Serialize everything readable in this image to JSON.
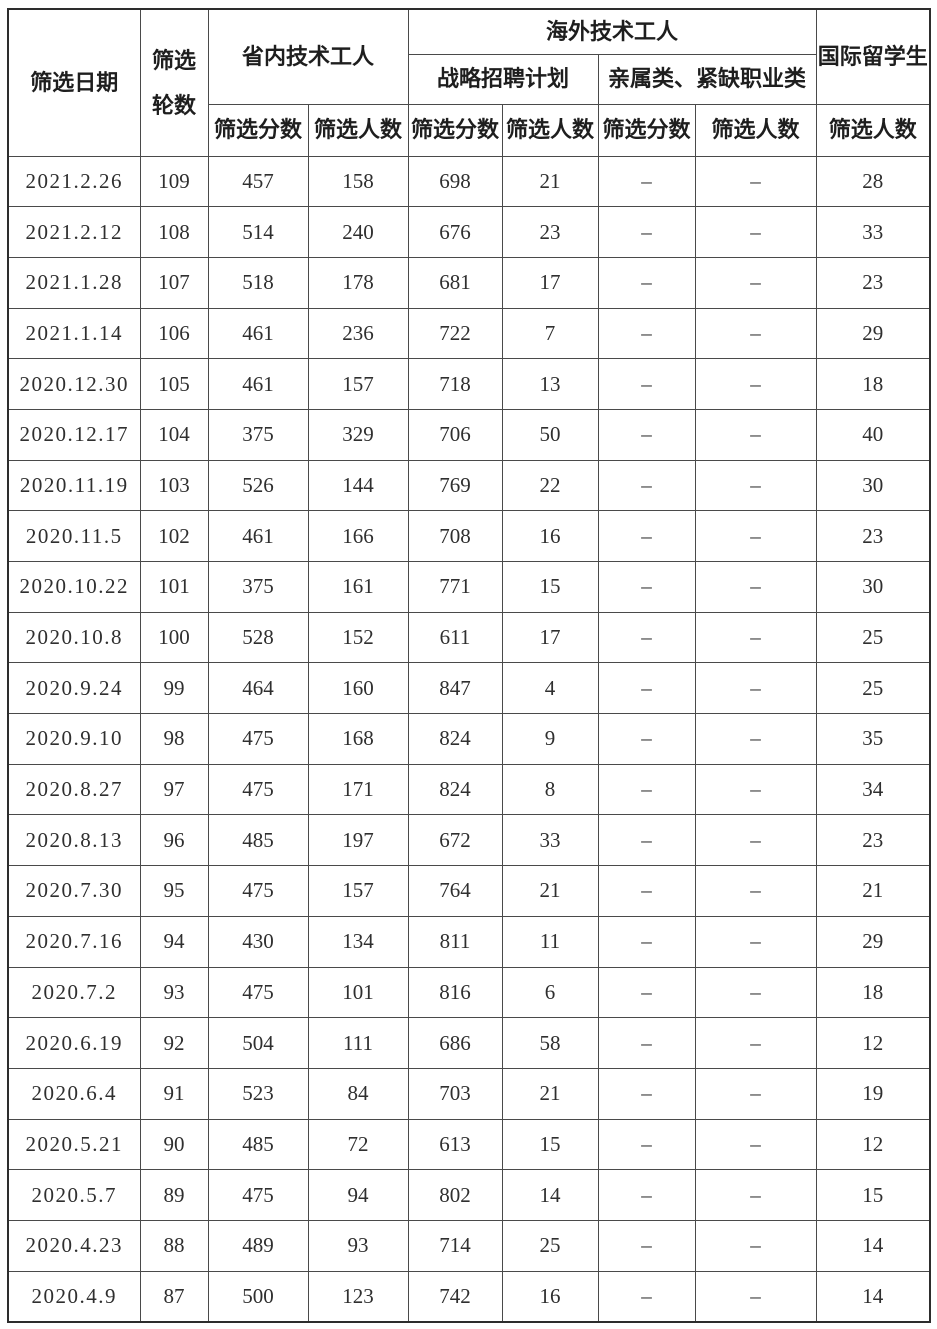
{
  "colors": {
    "background": "#ffffff",
    "grid_line": "#4a4a4a",
    "outer_border": "#2d2d2d",
    "header_text": "#1e1e1e",
    "data_text": "#2f2f2f"
  },
  "table": {
    "header": {
      "date": "筛选日期",
      "rounds": "筛选轮数",
      "group_province": "省内技术工人",
      "group_overseas": "海外技术工人",
      "group_strategic": "战略招聘计划",
      "group_family_shortage": "亲属类、紧缺职业类",
      "group_intl_students": "国际留学生",
      "sub_score": "筛选分数",
      "sub_count": "筛选人数"
    },
    "rows": [
      [
        "2021.2.26",
        "109",
        "457",
        "158",
        "698",
        "21",
        "–",
        "–",
        "28"
      ],
      [
        "2021.2.12",
        "108",
        "514",
        "240",
        "676",
        "23",
        "–",
        "–",
        "33"
      ],
      [
        "2021.1.28",
        "107",
        "518",
        "178",
        "681",
        "17",
        "–",
        "–",
        "23"
      ],
      [
        "2021.1.14",
        "106",
        "461",
        "236",
        "722",
        "7",
        "–",
        "–",
        "29"
      ],
      [
        "2020.12.30",
        "105",
        "461",
        "157",
        "718",
        "13",
        "–",
        "–",
        "18"
      ],
      [
        "2020.12.17",
        "104",
        "375",
        "329",
        "706",
        "50",
        "–",
        "–",
        "40"
      ],
      [
        "2020.11.19",
        "103",
        "526",
        "144",
        "769",
        "22",
        "–",
        "–",
        "30"
      ],
      [
        "2020.11.5",
        "102",
        "461",
        "166",
        "708",
        "16",
        "–",
        "–",
        "23"
      ],
      [
        "2020.10.22",
        "101",
        "375",
        "161",
        "771",
        "15",
        "–",
        "–",
        "30"
      ],
      [
        "2020.10.8",
        "100",
        "528",
        "152",
        "611",
        "17",
        "–",
        "–",
        "25"
      ],
      [
        "2020.9.24",
        "99",
        "464",
        "160",
        "847",
        "4",
        "–",
        "–",
        "25"
      ],
      [
        "2020.9.10",
        "98",
        "475",
        "168",
        "824",
        "9",
        "–",
        "–",
        "35"
      ],
      [
        "2020.8.27",
        "97",
        "475",
        "171",
        "824",
        "8",
        "–",
        "–",
        "34"
      ],
      [
        "2020.8.13",
        "96",
        "485",
        "197",
        "672",
        "33",
        "–",
        "–",
        "23"
      ],
      [
        "2020.7.30",
        "95",
        "475",
        "157",
        "764",
        "21",
        "–",
        "–",
        "21"
      ],
      [
        "2020.7.16",
        "94",
        "430",
        "134",
        "811",
        "11",
        "–",
        "–",
        "29"
      ],
      [
        "2020.7.2",
        "93",
        "475",
        "101",
        "816",
        "6",
        "–",
        "–",
        "18"
      ],
      [
        "2020.6.19",
        "92",
        "504",
        "111",
        "686",
        "58",
        "–",
        "–",
        "12"
      ],
      [
        "2020.6.4",
        "91",
        "523",
        "84",
        "703",
        "21",
        "–",
        "–",
        "19"
      ],
      [
        "2020.5.21",
        "90",
        "485",
        "72",
        "613",
        "15",
        "–",
        "–",
        "12"
      ],
      [
        "2020.5.7",
        "89",
        "475",
        "94",
        "802",
        "14",
        "–",
        "–",
        "15"
      ],
      [
        "2020.4.23",
        "88",
        "489",
        "93",
        "714",
        "25",
        "–",
        "–",
        "14"
      ],
      [
        "2020.4.9",
        "87",
        "500",
        "123",
        "742",
        "16",
        "–",
        "–",
        "14"
      ]
    ]
  }
}
